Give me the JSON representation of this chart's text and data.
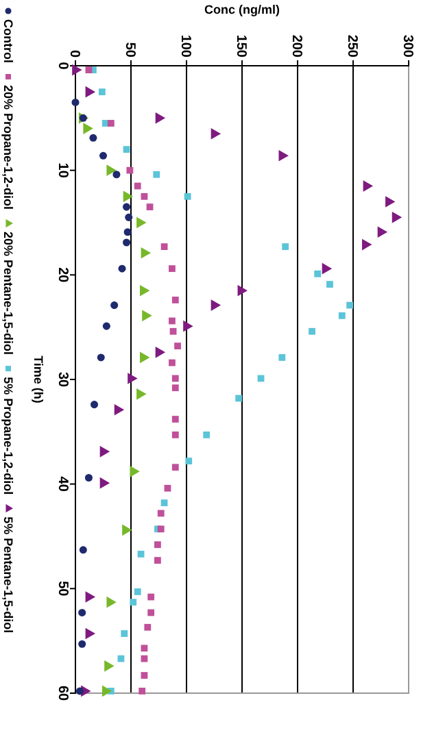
{
  "chart_data": {
    "type": "scatter",
    "xlabel": "Conc (ng/ml)",
    "ylabel": "Time (h)",
    "xlim": [
      0,
      300
    ],
    "xticks": [
      0,
      50,
      100,
      150,
      200,
      250,
      300
    ],
    "ylim": [
      60,
      0
    ],
    "yticks": [
      0,
      10,
      20,
      30,
      40,
      50,
      60
    ],
    "grid": "x",
    "legend": "left",
    "series": [
      {
        "name": "Control",
        "color": "#1f2a6e",
        "marker": "circle",
        "x": [
          0,
          7,
          16,
          25,
          37,
          46,
          48,
          47,
          46,
          42,
          35,
          28,
          23,
          17,
          12,
          7,
          6,
          6,
          4
        ],
        "values": [
          3.5,
          5,
          6.9,
          8.6,
          10.4,
          13.5,
          14.5,
          15.9,
          16.9,
          19.4,
          22.9,
          24.9,
          27.9,
          32.4,
          39.4,
          46.3,
          52.3,
          55.3,
          59.8
        ]
      },
      {
        "name": "20% Propane-1,2-diol",
        "color": "#c0509a",
        "marker": "square",
        "x": [
          12,
          32,
          49,
          56,
          62,
          67,
          80,
          87,
          90,
          87,
          88,
          92,
          87,
          90,
          90,
          90,
          90,
          90,
          83,
          77,
          77,
          74,
          74,
          68,
          68,
          65,
          62,
          62,
          62,
          60
        ],
        "values": [
          0.4,
          5.5,
          10,
          11.5,
          12.5,
          13.5,
          17.3,
          19.4,
          22.4,
          24.4,
          25.4,
          26.8,
          28.4,
          29.9,
          30.8,
          33.8,
          35.3,
          38.4,
          40.4,
          42.8,
          44.3,
          45.8,
          47.3,
          50.8,
          52.3,
          53.7,
          55.7,
          56.7,
          58.3,
          59.8
        ]
      },
      {
        "name": "20% Pentane-1,5-diol",
        "color": "#77b82a",
        "marker": "triangle",
        "x": [
          6,
          10,
          31,
          46,
          58,
          62,
          61,
          63,
          61,
          58,
          52,
          45,
          31,
          29,
          27
        ],
        "values": [
          5,
          6,
          10,
          12.5,
          15,
          17.9,
          21.5,
          23.9,
          27.9,
          31.4,
          38.8,
          44.4,
          51.3,
          57.4,
          59.8
        ]
      },
      {
        "name": "5% Propane-1,2-diol",
        "color": "#5bc4d8",
        "marker": "square",
        "x": [
          16,
          24,
          27,
          46,
          73,
          101,
          189,
          218,
          229,
          247,
          240,
          213,
          186,
          167,
          147,
          118,
          102,
          80,
          74,
          59,
          56,
          52,
          44,
          41,
          32
        ],
        "values": [
          0.4,
          2.5,
          5.5,
          8,
          10.4,
          12.5,
          17.3,
          19.9,
          20.9,
          22.9,
          23.9,
          25.4,
          27.9,
          29.9,
          31.8,
          35.3,
          37.8,
          41.8,
          44.3,
          46.7,
          50.3,
          51.3,
          54.3,
          56.7,
          59.8
        ]
      },
      {
        "name": "5% Pentane-1,5-diol",
        "color": "#7e1a80",
        "marker": "triangle",
        "x": [
          0,
          12,
          75,
          125,
          186,
          262,
          282,
          288,
          275,
          261,
          225,
          149,
          125,
          100,
          75,
          50,
          38,
          25,
          25,
          12,
          12,
          8
        ],
        "values": [
          0.4,
          2.5,
          5,
          6.5,
          8.6,
          11.5,
          13,
          14.5,
          15.9,
          17.1,
          19.4,
          21.5,
          22.9,
          24.9,
          27.4,
          29.9,
          32.9,
          36.9,
          39.9,
          50.8,
          54.3,
          59.8
        ]
      }
    ]
  }
}
